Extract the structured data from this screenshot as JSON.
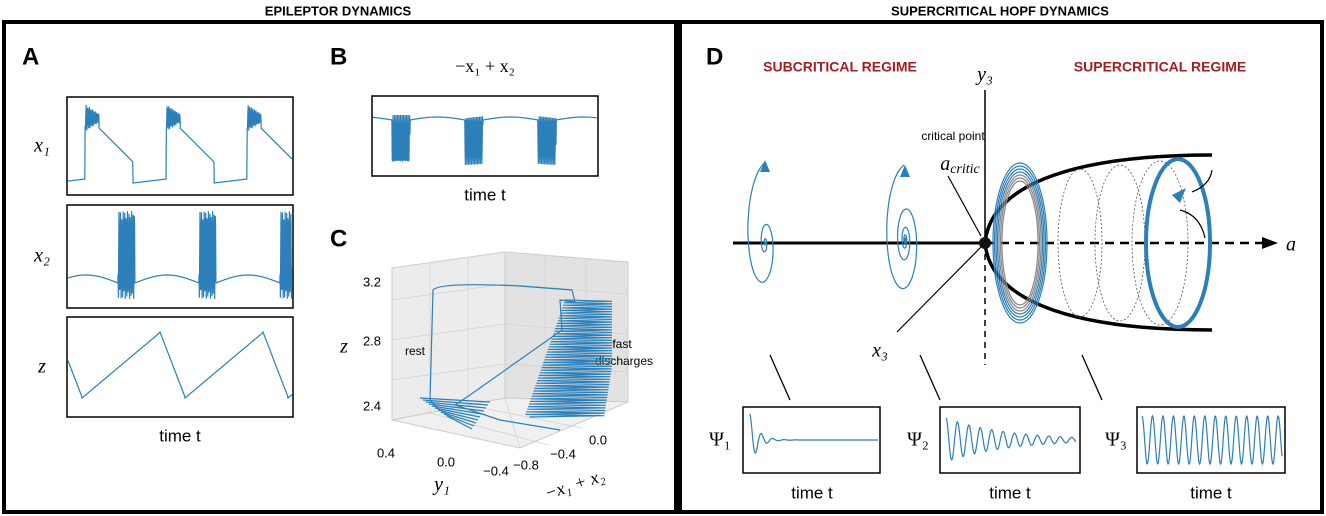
{
  "headers": {
    "left": "EPILEPTOR DYNAMICS",
    "right": "SUPERCRITICAL HOPF DYNAMICS"
  },
  "panel_a": {
    "label": "A",
    "rows": [
      "x₁",
      "x₂",
      "z"
    ],
    "xlabel": "time t"
  },
  "panel_b": {
    "label": "B",
    "title": "−x₁ + x₂",
    "xlabel": "time t"
  },
  "panel_c": {
    "label": "C",
    "zticks": [
      "3.2",
      "2.8",
      "2.4"
    ],
    "zlabel": "z",
    "yticks": [
      "0.4",
      "0.0",
      "−0.4"
    ],
    "ylabel": "y₁",
    "xticks": [
      "−0.8",
      "−0.4",
      "0.0"
    ],
    "xlabel": "−x₁ + x₂",
    "rest": "rest",
    "fast": [
      "fast",
      "discharges"
    ]
  },
  "panel_d": {
    "label": "D",
    "subcritical": "SUBCRITICAL REGIME",
    "supercritical": "SUPERCRITICAL REGIME",
    "y_axis": "y₃",
    "x_axis": "x₃",
    "a_axis": "a",
    "critical_point": "critical point",
    "a_critic": {
      "base": "a",
      "sub": "critic"
    },
    "signals": [
      {
        "name": "Ψ₁",
        "xlabel": "time t"
      },
      {
        "name": "Ψ₂",
        "xlabel": "time t"
      },
      {
        "name": "Ψ₃",
        "xlabel": "time t"
      }
    ]
  }
}
